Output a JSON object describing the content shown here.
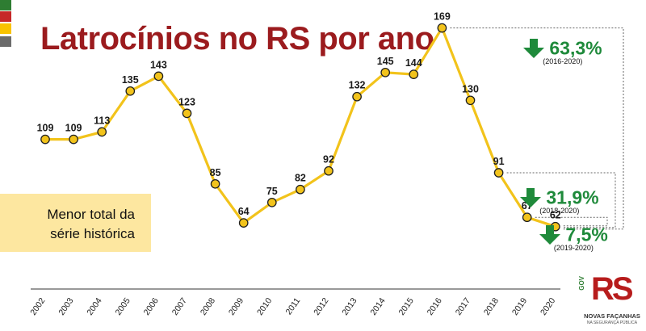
{
  "title": "Latrocínios no RS por ano",
  "colors": {
    "line": "#f2c31b",
    "point_fill": "#f2c31b",
    "point_stroke": "#1f1f1f",
    "title": "#9b1b1e",
    "badge": "#1f8a3b",
    "note_bg": "#fde7a0",
    "flag": [
      "#2e7d32",
      "#c62828",
      "#f9c300",
      "#6b6b6b"
    ]
  },
  "note": {
    "line1": "Menor total da",
    "line2": "série histórica"
  },
  "badges": [
    {
      "pct": "63,3%",
      "period": "(2016-2020)",
      "icon": "down-arrow-icon"
    },
    {
      "pct": "31,9%",
      "period": "(2018-2020)",
      "icon": "down-arrow-icon"
    },
    {
      "pct": "7,5%",
      "period": "(2019-2020)",
      "icon": "down-arrow-icon"
    }
  ],
  "logo": {
    "gov": "GOV",
    "rs": "RS",
    "name": "NOVAS FAÇANHAS",
    "sub": "NA SEGURANÇA PÚBLICA"
  },
  "chart_data": {
    "type": "line",
    "title": "Latrocínios no RS por ano",
    "xlabel": "",
    "ylabel": "",
    "categories": [
      "2002",
      "2003",
      "2004",
      "2005",
      "2006",
      "2007",
      "2008",
      "2009",
      "2010",
      "2011",
      "2012",
      "2013",
      "2014",
      "2015",
      "2016",
      "2017",
      "2018",
      "2019",
      "2020"
    ],
    "values": [
      109,
      109,
      113,
      135,
      143,
      123,
      85,
      64,
      75,
      82,
      92,
      132,
      145,
      144,
      169,
      130,
      91,
      67,
      62
    ],
    "ylim": [
      50,
      175
    ],
    "grid": false,
    "legend": "none"
  }
}
